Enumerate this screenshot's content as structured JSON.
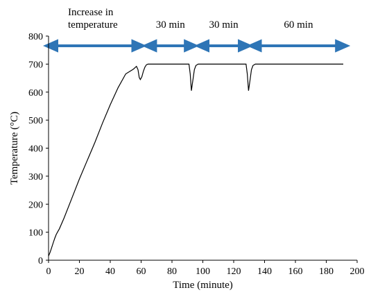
{
  "chart_data": {
    "type": "line",
    "xlabel": "Time (minute)",
    "ylabel": "Temperature (°C)",
    "xlim": [
      0,
      200
    ],
    "ylim": [
      0,
      800
    ],
    "x_ticks": [
      0,
      20,
      40,
      60,
      80,
      100,
      120,
      140,
      160,
      180,
      200
    ],
    "y_ticks": [
      0,
      100,
      200,
      300,
      400,
      500,
      600,
      700,
      800
    ],
    "grid": false,
    "line_color": "#000000",
    "arrow_color": "#2e75b6",
    "series": [
      {
        "x": [
          0,
          1,
          2,
          3,
          4,
          5,
          6,
          7,
          10,
          15,
          20,
          25,
          30,
          35,
          40,
          45,
          50,
          55,
          57,
          58,
          58.8,
          59.5,
          60.5,
          61.5,
          62.5,
          63.5,
          64.5,
          65,
          70,
          80,
          91,
          91.8,
          92.6,
          93.5,
          94.5,
          95.5,
          97,
          100,
          110,
          120,
          128,
          128.8,
          129.6,
          130.5,
          131.5,
          132.5,
          134,
          137,
          150,
          160,
          170,
          180,
          191
        ],
        "y": [
          15,
          28,
          45,
          62,
          78,
          92,
          102,
          112,
          150,
          220,
          290,
          355,
          420,
          490,
          555,
          615,
          665,
          682,
          692,
          680,
          652,
          645,
          655,
          675,
          690,
          698,
          700,
          700,
          700,
          700,
          700,
          665,
          605,
          640,
          680,
          695,
          700,
          700,
          700,
          700,
          700,
          665,
          605,
          640,
          680,
          695,
          700,
          700,
          700,
          700,
          700,
          700,
          700
        ]
      }
    ],
    "annotations": [
      {
        "label": "Increase in temperature",
        "label_lines": [
          "Increase in",
          "temperature"
        ],
        "x_start": 0,
        "x_end": 60
      },
      {
        "label": "30 min",
        "x_start": 64,
        "x_end": 94
      },
      {
        "label": "30 min",
        "x_start": 98,
        "x_end": 129
      },
      {
        "label": "60 min",
        "x_start": 132,
        "x_end": 192
      }
    ]
  }
}
